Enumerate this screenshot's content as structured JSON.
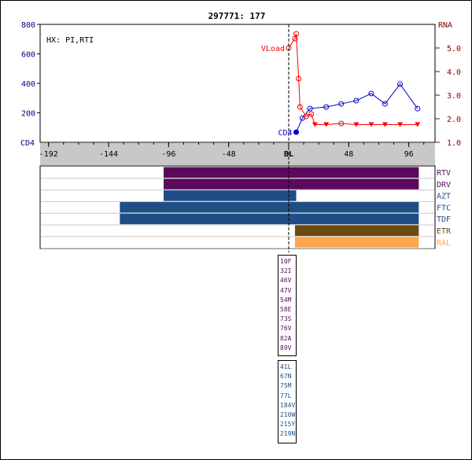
{
  "chart_data": {
    "type": "line",
    "title": "297771: 177",
    "annotation": "HX: PI,RTI",
    "xlabel": "",
    "x_ticks": [
      "-192",
      "-144",
      "-96",
      "-48",
      "BL",
      "48",
      "96"
    ],
    "x_tick_values": [
      -192,
      -144,
      -96,
      -48,
      0,
      48,
      96
    ],
    "xlim": [
      -198,
      118
    ],
    "left_axis": {
      "label": "CD4",
      "ticks": [
        "800",
        "600",
        "400",
        "200"
      ],
      "ylim": [
        0,
        800
      ],
      "color": "#000080"
    },
    "right_axis": {
      "label": "RNA",
      "ticks": [
        "5.0",
        "4.0",
        "3.0",
        "2.0",
        "1.0"
      ],
      "ylim": [
        1.0,
        6.0
      ],
      "color": "#800000"
    },
    "series": [
      {
        "name": "CD4",
        "axis": "left",
        "color": "#0000cc",
        "x": [
          6,
          11,
          17,
          30,
          42,
          54,
          66,
          77,
          89,
          103
        ],
        "y": [
          69,
          165,
          229,
          240,
          261,
          283,
          331,
          261,
          395,
          229
        ]
      },
      {
        "name": "VLoad",
        "axis": "right",
        "color": "#ff0000",
        "x": [
          0,
          5,
          6,
          8,
          9,
          14,
          18,
          21,
          30,
          42,
          54,
          66,
          77,
          89,
          103
        ],
        "y": [
          5.0,
          5.4,
          5.6,
          3.7,
          2.5,
          2.1,
          2.2,
          1.75,
          1.75,
          1.8,
          1.75,
          1.75,
          1.75,
          1.75,
          1.75
        ],
        "below_limit": [
          false,
          false,
          false,
          false,
          false,
          false,
          false,
          true,
          true,
          false,
          true,
          true,
          true,
          true,
          true
        ]
      }
    ],
    "drugs": [
      {
        "name": "RTV",
        "start": -100,
        "end": 104,
        "color": "#5c0a5c",
        "label_color": "#5c0a5c"
      },
      {
        "name": "DRV",
        "start": -100,
        "end": 104,
        "color": "#5c0a5c",
        "label_color": "#5c0a5c"
      },
      {
        "name": "AZT",
        "start": -100,
        "end": 6,
        "color": "#1f4e85",
        "label_color": "#1f4e85"
      },
      {
        "name": "FTC",
        "start": -135,
        "end": 104,
        "color": "#1f4e85",
        "label_color": "#1f4e85"
      },
      {
        "name": "TDF",
        "start": -135,
        "end": 104,
        "color": "#1f4e85",
        "label_color": "#1f4e85"
      },
      {
        "name": "ETR",
        "start": 5,
        "end": 104,
        "color": "#6b4a14",
        "label_color": "#6b4a14"
      },
      {
        "name": "RAL",
        "start": 5,
        "end": 104,
        "color": "#ffa64d",
        "label_color": "#ffa64d"
      }
    ]
  },
  "mutations": {
    "pr": [
      "10F",
      "32I",
      "46V",
      "47V",
      "54M",
      "58E",
      "73S",
      "76V",
      "82A",
      "89V"
    ],
    "rt": [
      "41L",
      "67N",
      "75M",
      "77L",
      "184V",
      "210W",
      "215Y",
      "219N"
    ]
  }
}
